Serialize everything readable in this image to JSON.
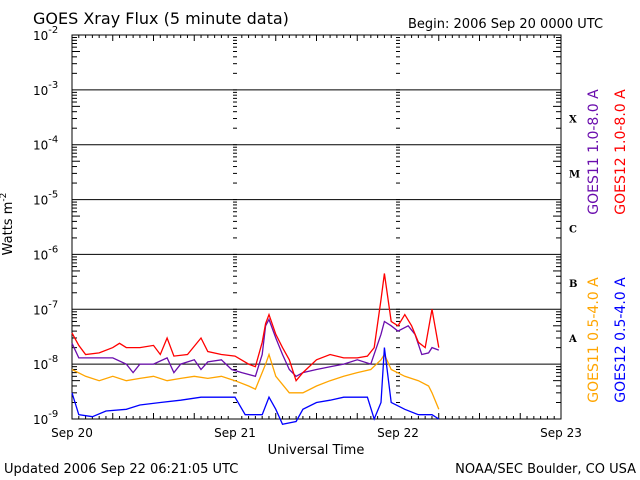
{
  "title": "GOES Xray Flux (5 minute data)",
  "begin_label": "Begin:  2006 Sep 20 0000 UTC",
  "updated_label": "Updated 2006 Sep 22 06:21:05 UTC",
  "credit_label": "NOAA/SEC Boulder, CO USA",
  "chart_data": {
    "type": "line",
    "title": "GOES Xray Flux (5 minute data)",
    "xlabel": "Universal Time",
    "ylabel": "Watts m",
    "ylabel_sup": "-2",
    "yscale": "log",
    "ylim": [
      1e-09,
      0.01
    ],
    "xlim": [
      "2006-09-20 00:00",
      "2006-09-23 00:00"
    ],
    "grid": true,
    "legend_placement": "right",
    "x_ticks": [
      "Sep 20",
      "Sep 21",
      "Sep 22",
      "Sep 23"
    ],
    "y_ticks": [
      {
        "base": "10",
        "exp": "-2",
        "value": 0.01
      },
      {
        "base": "10",
        "exp": "-3",
        "value": 0.001
      },
      {
        "base": "10",
        "exp": "-4",
        "value": 0.0001
      },
      {
        "base": "10",
        "exp": "-5",
        "value": 1e-05
      },
      {
        "base": "10",
        "exp": "-6",
        "value": 1e-06
      },
      {
        "base": "10",
        "exp": "-7",
        "value": 1e-07
      },
      {
        "base": "10",
        "exp": "-8",
        "value": 1e-08
      },
      {
        "base": "10",
        "exp": "-9",
        "value": 1e-09
      }
    ],
    "flare_classes": [
      {
        "label": "X",
        "value": 0.0003
      },
      {
        "label": "M",
        "value": 3e-05
      },
      {
        "label": "C",
        "value": 3e-06
      },
      {
        "label": "B",
        "value": 3e-07
      },
      {
        "label": "A",
        "value": 3e-08
      }
    ],
    "series": [
      {
        "name": "GOES11 1.0-8.0 A",
        "color": "#6a0dad",
        "points": [
          [
            "2006-09-20 00:00",
            2.4e-08
          ],
          [
            "2006-09-20 01:00",
            1.3e-08
          ],
          [
            "2006-09-20 03:00",
            1.3e-08
          ],
          [
            "2006-09-20 06:00",
            1.3e-08
          ],
          [
            "2006-09-20 08:00",
            1e-08
          ],
          [
            "2006-09-20 09:00",
            7e-09
          ],
          [
            "2006-09-20 10:00",
            1e-08
          ],
          [
            "2006-09-20 12:00",
            1e-08
          ],
          [
            "2006-09-20 14:00",
            1.3e-08
          ],
          [
            "2006-09-20 15:00",
            7e-09
          ],
          [
            "2006-09-20 16:00",
            1e-08
          ],
          [
            "2006-09-20 18:00",
            1.2e-08
          ],
          [
            "2006-09-20 19:00",
            8e-09
          ],
          [
            "2006-09-20 20:00",
            1.1e-08
          ],
          [
            "2006-09-20 22:00",
            1.2e-08
          ],
          [
            "2006-09-20 23:30",
            8e-09
          ],
          [
            "2006-09-21 01:00",
            7e-09
          ],
          [
            "2006-09-21 03:00",
            6e-09
          ],
          [
            "2006-09-21 04:00",
            1.5e-08
          ],
          [
            "2006-09-21 04:30",
            5e-08
          ],
          [
            "2006-09-21 05:00",
            6.5e-08
          ],
          [
            "2006-09-21 06:00",
            3e-08
          ],
          [
            "2006-09-21 07:00",
            1.5e-08
          ],
          [
            "2006-09-21 08:00",
            8e-09
          ],
          [
            "2006-09-21 09:00",
            6e-09
          ],
          [
            "2006-09-21 10:00",
            7e-09
          ],
          [
            "2006-09-21 12:00",
            8e-09
          ],
          [
            "2006-09-21 14:00",
            9e-09
          ],
          [
            "2006-09-21 16:00",
            1e-08
          ],
          [
            "2006-09-21 18:00",
            1.2e-08
          ],
          [
            "2006-09-21 20:00",
            1e-08
          ],
          [
            "2006-09-21 21:30",
            3.5e-08
          ],
          [
            "2006-09-21 22:00",
            6e-08
          ],
          [
            "2006-09-21 23:00",
            5e-08
          ],
          [
            "2006-09-22 00:00",
            4e-08
          ],
          [
            "2006-09-22 01:30",
            5e-08
          ],
          [
            "2006-09-22 02:30",
            3.5e-08
          ],
          [
            "2006-09-22 03:30",
            1.5e-08
          ],
          [
            "2006-09-22 04:30",
            1.6e-08
          ],
          [
            "2006-09-22 05:00",
            2e-08
          ],
          [
            "2006-09-22 06:00",
            1.8e-08
          ]
        ]
      },
      {
        "name": "GOES12 1.0-8.0 A",
        "color": "#ff0000",
        "points": [
          [
            "2006-09-20 00:00",
            3.7e-08
          ],
          [
            "2006-09-20 01:00",
            2.2e-08
          ],
          [
            "2006-09-20 02:00",
            1.5e-08
          ],
          [
            "2006-09-20 04:00",
            1.6e-08
          ],
          [
            "2006-09-20 06:00",
            2e-08
          ],
          [
            "2006-09-20 07:00",
            2.4e-08
          ],
          [
            "2006-09-20 08:00",
            2e-08
          ],
          [
            "2006-09-20 10:00",
            2e-08
          ],
          [
            "2006-09-20 12:00",
            2.2e-08
          ],
          [
            "2006-09-20 13:00",
            1.5e-08
          ],
          [
            "2006-09-20 14:00",
            3e-08
          ],
          [
            "2006-09-20 15:00",
            1.4e-08
          ],
          [
            "2006-09-20 17:00",
            1.5e-08
          ],
          [
            "2006-09-20 19:00",
            3e-08
          ],
          [
            "2006-09-20 20:00",
            1.7e-08
          ],
          [
            "2006-09-20 22:00",
            1.5e-08
          ],
          [
            "2006-09-21 00:00",
            1.4e-08
          ],
          [
            "2006-09-21 02:00",
            1e-08
          ],
          [
            "2006-09-21 03:00",
            9e-09
          ],
          [
            "2006-09-21 04:00",
            2.5e-08
          ],
          [
            "2006-09-21 04:30",
            5.5e-08
          ],
          [
            "2006-09-21 05:00",
            8e-08
          ],
          [
            "2006-09-21 06:00",
            3.5e-08
          ],
          [
            "2006-09-21 07:00",
            2e-08
          ],
          [
            "2006-09-21 08:00",
            1.2e-08
          ],
          [
            "2006-09-21 09:00",
            5e-09
          ],
          [
            "2006-09-21 10:00",
            7e-09
          ],
          [
            "2006-09-21 12:00",
            1.2e-08
          ],
          [
            "2006-09-21 14:00",
            1.5e-08
          ],
          [
            "2006-09-21 16:00",
            1.3e-08
          ],
          [
            "2006-09-21 18:00",
            1.3e-08
          ],
          [
            "2006-09-21 19:30",
            1.4e-08
          ],
          [
            "2006-09-21 20:30",
            2e-08
          ],
          [
            "2006-09-21 21:30",
            1.5e-07
          ],
          [
            "2006-09-21 22:00",
            4.5e-07
          ],
          [
            "2006-09-21 23:00",
            6e-08
          ],
          [
            "2006-09-22 00:00",
            5e-08
          ],
          [
            "2006-09-22 01:00",
            8e-08
          ],
          [
            "2006-09-22 02:00",
            5e-08
          ],
          [
            "2006-09-22 03:00",
            2.5e-08
          ],
          [
            "2006-09-22 04:00",
            2e-08
          ],
          [
            "2006-09-22 05:00",
            1e-07
          ],
          [
            "2006-09-22 06:00",
            2e-08
          ]
        ]
      },
      {
        "name": "GOES11 0.5-4.0 A",
        "color": "#ffa500",
        "points": [
          [
            "2006-09-20 00:00",
            8e-09
          ],
          [
            "2006-09-20 02:00",
            6e-09
          ],
          [
            "2006-09-20 04:00",
            5e-09
          ],
          [
            "2006-09-20 06:00",
            6e-09
          ],
          [
            "2006-09-20 08:00",
            5e-09
          ],
          [
            "2006-09-20 10:00",
            5.5e-09
          ],
          [
            "2006-09-20 12:00",
            6e-09
          ],
          [
            "2006-09-20 14:00",
            5e-09
          ],
          [
            "2006-09-20 16:00",
            5.5e-09
          ],
          [
            "2006-09-20 18:00",
            6e-09
          ],
          [
            "2006-09-20 20:00",
            5.5e-09
          ],
          [
            "2006-09-20 22:00",
            6e-09
          ],
          [
            "2006-09-21 00:00",
            5e-09
          ],
          [
            "2006-09-21 02:00",
            4e-09
          ],
          [
            "2006-09-21 03:00",
            3.5e-09
          ],
          [
            "2006-09-21 04:30",
            1e-08
          ],
          [
            "2006-09-21 05:00",
            1.5e-08
          ],
          [
            "2006-09-21 06:00",
            6e-09
          ],
          [
            "2006-09-21 08:00",
            3e-09
          ],
          [
            "2006-09-21 10:00",
            3e-09
          ],
          [
            "2006-09-21 12:00",
            4e-09
          ],
          [
            "2006-09-21 14:00",
            5e-09
          ],
          [
            "2006-09-21 16:00",
            6e-09
          ],
          [
            "2006-09-21 18:00",
            7e-09
          ],
          [
            "2006-09-21 20:00",
            8e-09
          ],
          [
            "2006-09-21 21:30",
            1.2e-08
          ],
          [
            "2006-09-21 22:00",
            1.5e-08
          ],
          [
            "2006-09-21 23:00",
            8e-09
          ],
          [
            "2006-09-22 01:00",
            6e-09
          ],
          [
            "2006-09-22 03:00",
            5e-09
          ],
          [
            "2006-09-22 04:30",
            4e-09
          ],
          [
            "2006-09-22 05:00",
            3e-09
          ],
          [
            "2006-09-22 06:00",
            1.5e-09
          ]
        ]
      },
      {
        "name": "GOES12 0.5-4.0 A",
        "color": "#0000ff",
        "points": [
          [
            "2006-09-20 00:00",
            3e-09
          ],
          [
            "2006-09-20 01:00",
            1.2e-09
          ],
          [
            "2006-09-20 03:00",
            1.1e-09
          ],
          [
            "2006-09-20 05:00",
            1.4e-09
          ],
          [
            "2006-09-20 08:00",
            1.5e-09
          ],
          [
            "2006-09-20 10:00",
            1.8e-09
          ],
          [
            "2006-09-20 13:00",
            2e-09
          ],
          [
            "2006-09-20 16:00",
            2.2e-09
          ],
          [
            "2006-09-20 19:00",
            2.5e-09
          ],
          [
            "2006-09-20 22:00",
            2.5e-09
          ],
          [
            "2006-09-21 00:00",
            2.5e-09
          ],
          [
            "2006-09-21 01:30",
            1.2e-09
          ],
          [
            "2006-09-21 04:00",
            1.2e-09
          ],
          [
            "2006-09-21 05:00",
            2.5e-09
          ],
          [
            "2006-09-21 06:00",
            1.5e-09
          ],
          [
            "2006-09-21 07:00",
            8e-10
          ],
          [
            "2006-09-21 09:00",
            9e-10
          ],
          [
            "2006-09-21 10:00",
            1.5e-09
          ],
          [
            "2006-09-21 12:00",
            2e-09
          ],
          [
            "2006-09-21 14:00",
            2.2e-09
          ],
          [
            "2006-09-21 16:00",
            2.5e-09
          ],
          [
            "2006-09-21 18:00",
            2.5e-09
          ],
          [
            "2006-09-21 19:30",
            2.5e-09
          ],
          [
            "2006-09-21 20:30",
            1e-09
          ],
          [
            "2006-09-21 21:30",
            2e-09
          ],
          [
            "2006-09-21 22:00",
            2e-08
          ],
          [
            "2006-09-21 23:00",
            2e-09
          ],
          [
            "2006-09-22 01:00",
            1.5e-09
          ],
          [
            "2006-09-22 03:00",
            1.2e-09
          ],
          [
            "2006-09-22 05:00",
            1.2e-09
          ],
          [
            "2006-09-22 06:00",
            1e-09
          ]
        ]
      }
    ]
  }
}
